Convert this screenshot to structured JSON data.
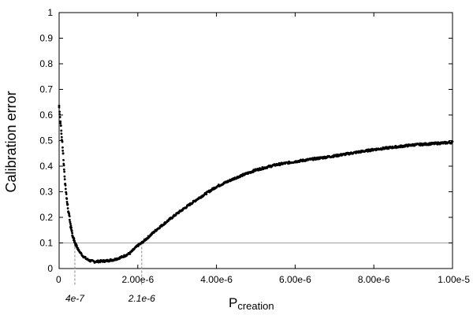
{
  "chart_data": {
    "type": "scatter",
    "title": "",
    "xlabel_main": "P",
    "xlabel_sub": "creation",
    "ylabel": "Calibration error",
    "xlim": [
      0,
      1e-05
    ],
    "ylim": [
      0,
      1
    ],
    "x_ticks": [
      {
        "value": 0,
        "label": "0"
      },
      {
        "value": 2e-06,
        "label": "2.00e-6"
      },
      {
        "value": 4e-06,
        "label": "4.00e-6"
      },
      {
        "value": 6e-06,
        "label": "6.00e-6"
      },
      {
        "value": 8e-06,
        "label": "8.00e-6"
      },
      {
        "value": 1e-05,
        "label": "1.00e-5"
      }
    ],
    "y_ticks": [
      {
        "value": 0,
        "label": "0"
      },
      {
        "value": 0.1,
        "label": "0.1"
      },
      {
        "value": 0.2,
        "label": "0.2"
      },
      {
        "value": 0.3,
        "label": "0.3"
      },
      {
        "value": 0.4,
        "label": "0.4"
      },
      {
        "value": 0.5,
        "label": "0.5"
      },
      {
        "value": 0.6,
        "label": "0.6"
      },
      {
        "value": 0.7,
        "label": "0.7"
      },
      {
        "value": 0.8,
        "label": "0.8"
      },
      {
        "value": 0.9,
        "label": "0.9"
      },
      {
        "value": 1,
        "label": "1"
      }
    ],
    "reference_line": {
      "y": 0.1,
      "color": "#aaaaaa"
    },
    "annotations": [
      {
        "x": 4e-07,
        "label": "4e-7"
      },
      {
        "x": 2.1e-06,
        "label": "2.1e-6"
      }
    ],
    "series_color": "#000000",
    "curve_points": [
      {
        "x": 0.0,
        "y": 0.63
      },
      {
        "x": 5e-08,
        "y": 0.55
      },
      {
        "x": 1e-07,
        "y": 0.45
      },
      {
        "x": 1.5e-07,
        "y": 0.34
      },
      {
        "x": 2e-07,
        "y": 0.26
      },
      {
        "x": 2.5e-07,
        "y": 0.21
      },
      {
        "x": 3e-07,
        "y": 0.16
      },
      {
        "x": 3.5e-07,
        "y": 0.125
      },
      {
        "x": 4e-07,
        "y": 0.1
      },
      {
        "x": 5e-07,
        "y": 0.07
      },
      {
        "x": 6e-07,
        "y": 0.05
      },
      {
        "x": 7e-07,
        "y": 0.037
      },
      {
        "x": 8e-07,
        "y": 0.03
      },
      {
        "x": 9e-07,
        "y": 0.027
      },
      {
        "x": 1e-06,
        "y": 0.028
      },
      {
        "x": 1.2e-06,
        "y": 0.03
      },
      {
        "x": 1.4e-06,
        "y": 0.035
      },
      {
        "x": 1.6e-06,
        "y": 0.045
      },
      {
        "x": 1.8e-06,
        "y": 0.06
      },
      {
        "x": 2e-06,
        "y": 0.09
      },
      {
        "x": 2.1e-06,
        "y": 0.1
      },
      {
        "x": 2.5e-06,
        "y": 0.155
      },
      {
        "x": 3e-06,
        "y": 0.215
      },
      {
        "x": 3.5e-06,
        "y": 0.27
      },
      {
        "x": 4e-06,
        "y": 0.32
      },
      {
        "x": 4.5e-06,
        "y": 0.355
      },
      {
        "x": 5e-06,
        "y": 0.385
      },
      {
        "x": 5.5e-06,
        "y": 0.405
      },
      {
        "x": 6e-06,
        "y": 0.418
      },
      {
        "x": 7e-06,
        "y": 0.44
      },
      {
        "x": 8e-06,
        "y": 0.465
      },
      {
        "x": 9e-06,
        "y": 0.483
      },
      {
        "x": 1e-05,
        "y": 0.493
      }
    ]
  }
}
